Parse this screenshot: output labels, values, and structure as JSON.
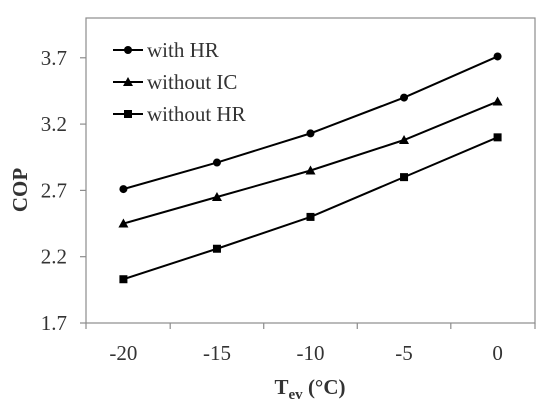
{
  "chart_data": {
    "type": "line",
    "title": "",
    "xlabel": "T",
    "xlabel_sub": "ev",
    "xlabel_unit": " (°C)",
    "ylabel": "COP",
    "x": [
      -20,
      -15,
      -10,
      -5,
      0
    ],
    "xlim": [
      -22,
      2
    ],
    "ylim": [
      1.7,
      4.0
    ],
    "xticks": [
      -20,
      -15,
      -10,
      -5,
      0
    ],
    "yticks": [
      1.7,
      2.2,
      2.7,
      3.2,
      3.7
    ],
    "xtick_labels": [
      "-20",
      "-15",
      "-10",
      "-5",
      "0"
    ],
    "ytick_labels": [
      "1.7",
      "2.2",
      "2.7",
      "3.2",
      "3.7"
    ],
    "grid": false,
    "legend_position": "top-left",
    "series": [
      {
        "name": "with HR",
        "marker": "circle",
        "values": [
          2.71,
          2.91,
          3.13,
          3.4,
          3.71
        ]
      },
      {
        "name": "without IC",
        "marker": "triangle",
        "values": [
          2.45,
          2.65,
          2.85,
          3.08,
          3.37
        ]
      },
      {
        "name": "without HR",
        "marker": "square",
        "values": [
          2.03,
          2.26,
          2.5,
          2.8,
          3.1
        ]
      }
    ],
    "colors": {
      "line": "#000000",
      "axis": "#8c8c8c",
      "text": "#333333"
    }
  }
}
